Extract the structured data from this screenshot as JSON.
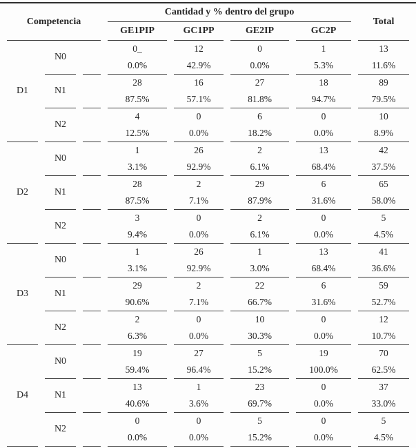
{
  "table": {
    "header": {
      "competencia": "Competencia",
      "group_header": "Cantidad y % dentro del grupo",
      "columns": [
        "GE1PIP",
        "GC1PP",
        "GE2IP",
        "GC2P"
      ],
      "total": "Total"
    },
    "groups": [
      {
        "label": "D1",
        "rows": [
          {
            "level": "N0",
            "counts": [
              "0_",
              "12",
              "0",
              "1",
              "13"
            ],
            "percents": [
              "0.0%",
              "42.9%",
              "0.0%",
              "5.3%",
              "11.6%"
            ]
          },
          {
            "level": "N1",
            "counts": [
              "28",
              "16",
              "27",
              "18",
              "89"
            ],
            "percents": [
              "87.5%",
              "57.1%",
              "81.8%",
              "94.7%",
              "79.5%"
            ]
          },
          {
            "level": "N2",
            "counts": [
              "4",
              "0",
              "6",
              "0",
              "10"
            ],
            "percents": [
              "12.5%",
              "0.0%",
              "18.2%",
              "0.0%",
              "8.9%"
            ]
          }
        ]
      },
      {
        "label": "D2",
        "rows": [
          {
            "level": "N0",
            "counts": [
              "1",
              "26",
              "2",
              "13",
              "42"
            ],
            "percents": [
              "3.1%",
              "92.9%",
              "6.1%",
              "68.4%",
              "37.5%"
            ]
          },
          {
            "level": "N1",
            "counts": [
              "28",
              "2",
              "29",
              "6",
              "65"
            ],
            "percents": [
              "87.5%",
              "7.1%",
              "87.9%",
              "31.6%",
              "58.0%"
            ]
          },
          {
            "level": "N2",
            "counts": [
              "3",
              "0",
              "2",
              "0",
              "5"
            ],
            "percents": [
              "9.4%",
              "0.0%",
              "6.1%",
              "0.0%",
              "4.5%"
            ]
          }
        ]
      },
      {
        "label": "D3",
        "rows": [
          {
            "level": "N0",
            "counts": [
              "1",
              "26",
              "1",
              "13",
              "41"
            ],
            "percents": [
              "3.1%",
              "92.9%",
              "3.0%",
              "68.4%",
              "36.6%"
            ]
          },
          {
            "level": "N1",
            "counts": [
              "29",
              "2",
              "22",
              "6",
              "59"
            ],
            "percents": [
              "90.6%",
              "7.1%",
              "66.7%",
              "31.6%",
              "52.7%"
            ]
          },
          {
            "level": "N2",
            "counts": [
              "2",
              "0",
              "10",
              "0",
              "12"
            ],
            "percents": [
              "6.3%",
              "0.0%",
              "30.3%",
              "0.0%",
              "10.7%"
            ]
          }
        ]
      },
      {
        "label": "D4",
        "rows": [
          {
            "level": "N0",
            "counts": [
              "19",
              "27",
              "5",
              "19",
              "70"
            ],
            "percents": [
              "59.4%",
              "96.4%",
              "15.2%",
              "100.0%",
              "62.5%"
            ]
          },
          {
            "level": "N1",
            "counts": [
              "13",
              "1",
              "23",
              "0",
              "37"
            ],
            "percents": [
              "40.6%",
              "3.6%",
              "69.7%",
              "0.0%",
              "33.0%"
            ]
          },
          {
            "level": "N2",
            "counts": [
              "0",
              "0",
              "5",
              "0",
              "5"
            ],
            "percents": [
              "0.0%",
              "0.0%",
              "15.2%",
              "0.0%",
              "4.5%"
            ]
          }
        ]
      }
    ],
    "line_color": "#3d3d3d",
    "text_color": "#272727"
  }
}
